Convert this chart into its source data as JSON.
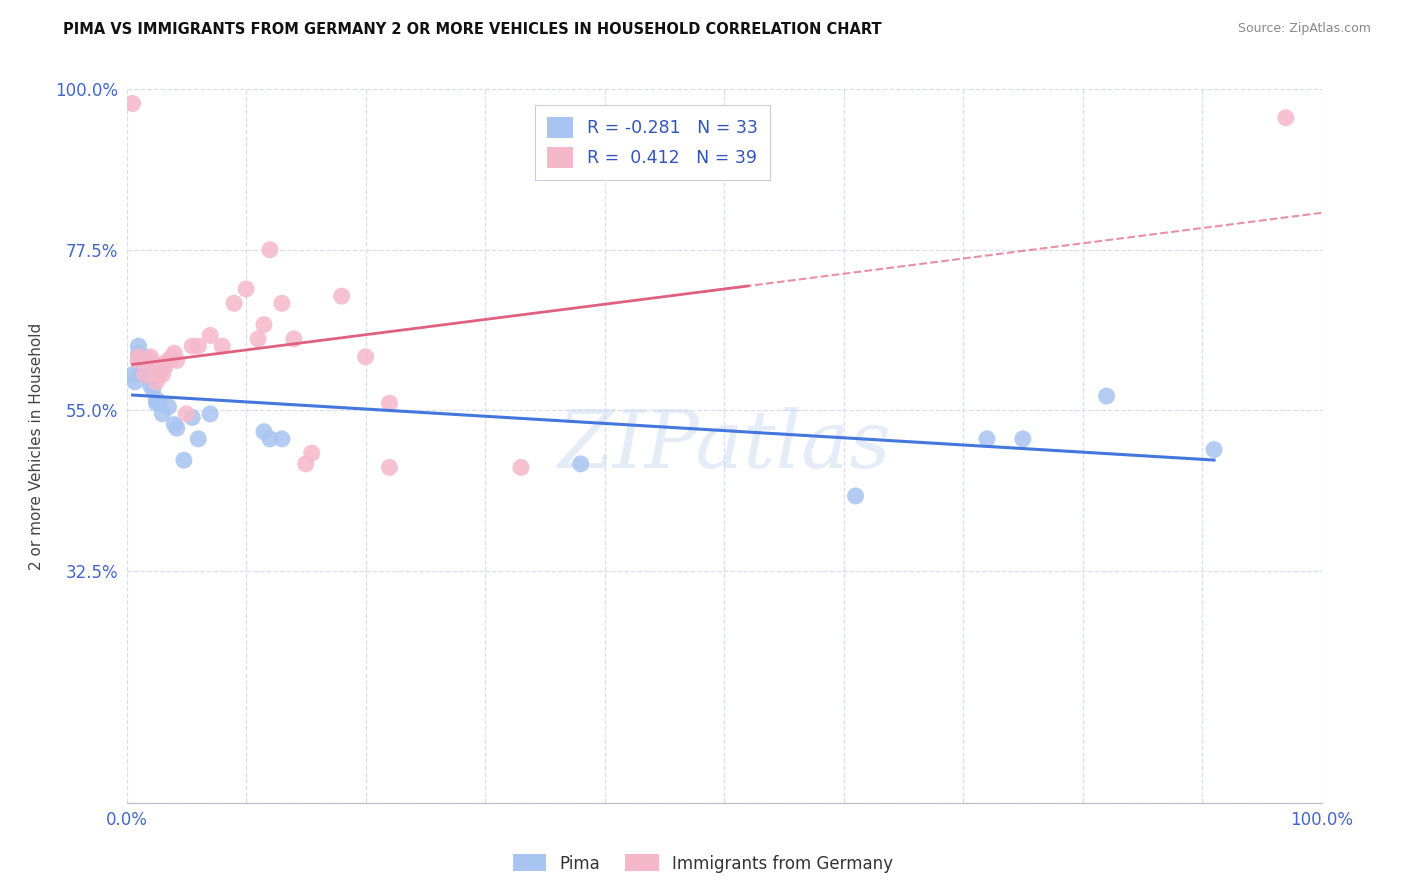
{
  "title": "PIMA VS IMMIGRANTS FROM GERMANY 2 OR MORE VEHICLES IN HOUSEHOLD CORRELATION CHART",
  "source": "Source: ZipAtlas.com",
  "ylabel": "2 or more Vehicles in Household",
  "watermark": "ZIPatlas",
  "legend_R_pima": "-0.281",
  "legend_N_pima": "33",
  "legend_R_germany": "0.412",
  "legend_N_germany": "39",
  "pima_color": "#a8c4f0",
  "germany_color": "#f5b8cb",
  "pima_line_color": "#4477dd",
  "germany_line_color": "#e06080",
  "background_color": "#ffffff",
  "grid_color": "#d8ddf0",
  "xlim": [
    0.0,
    1.0
  ],
  "ylim": [
    0.0,
    1.0
  ],
  "xtick_positions": [
    0.0,
    0.1,
    0.2,
    0.3,
    0.4,
    0.5,
    0.6,
    0.7,
    0.8,
    0.9,
    1.0
  ],
  "xticklabels": [
    "0.0%",
    "",
    "",
    "",
    "",
    "",
    "",
    "",
    "",
    "",
    "100.0%"
  ],
  "ytick_positions": [
    0.0,
    0.325,
    0.55,
    0.775,
    1.0
  ],
  "yticklabels": [
    "",
    "32.5%",
    "55.0%",
    "77.5%",
    "100.0%"
  ],
  "pima_x": [
    0.005,
    0.007,
    0.01,
    0.01,
    0.01,
    0.012,
    0.015,
    0.015,
    0.018,
    0.02,
    0.02,
    0.02,
    0.022,
    0.025,
    0.025,
    0.028,
    0.03,
    0.035,
    0.04,
    0.042,
    0.048,
    0.055,
    0.06,
    0.07,
    0.115,
    0.12,
    0.13,
    0.38,
    0.61,
    0.72,
    0.75,
    0.82,
    0.91
  ],
  "pima_y": [
    0.6,
    0.59,
    0.64,
    0.63,
    0.62,
    0.6,
    0.625,
    0.615,
    0.61,
    0.61,
    0.6,
    0.585,
    0.58,
    0.565,
    0.56,
    0.56,
    0.545,
    0.555,
    0.53,
    0.525,
    0.48,
    0.54,
    0.51,
    0.545,
    0.52,
    0.51,
    0.51,
    0.475,
    0.43,
    0.51,
    0.51,
    0.57,
    0.495
  ],
  "germany_x": [
    0.005,
    0.01,
    0.01,
    0.015,
    0.018,
    0.02,
    0.02,
    0.022,
    0.025,
    0.025,
    0.028,
    0.03,
    0.03,
    0.03,
    0.032,
    0.035,
    0.038,
    0.04,
    0.042,
    0.05,
    0.055,
    0.06,
    0.07,
    0.08,
    0.09,
    0.1,
    0.11,
    0.115,
    0.12,
    0.13,
    0.14,
    0.15,
    0.155,
    0.18,
    0.2,
    0.22,
    0.22,
    0.33,
    0.97
  ],
  "germany_y": [
    0.98,
    0.62,
    0.625,
    0.6,
    0.62,
    0.62,
    0.625,
    0.615,
    0.59,
    0.6,
    0.605,
    0.61,
    0.6,
    0.615,
    0.61,
    0.62,
    0.625,
    0.63,
    0.62,
    0.545,
    0.64,
    0.64,
    0.655,
    0.64,
    0.7,
    0.72,
    0.65,
    0.67,
    0.775,
    0.7,
    0.65,
    0.475,
    0.49,
    0.71,
    0.625,
    0.56,
    0.47,
    0.47,
    0.96
  ]
}
